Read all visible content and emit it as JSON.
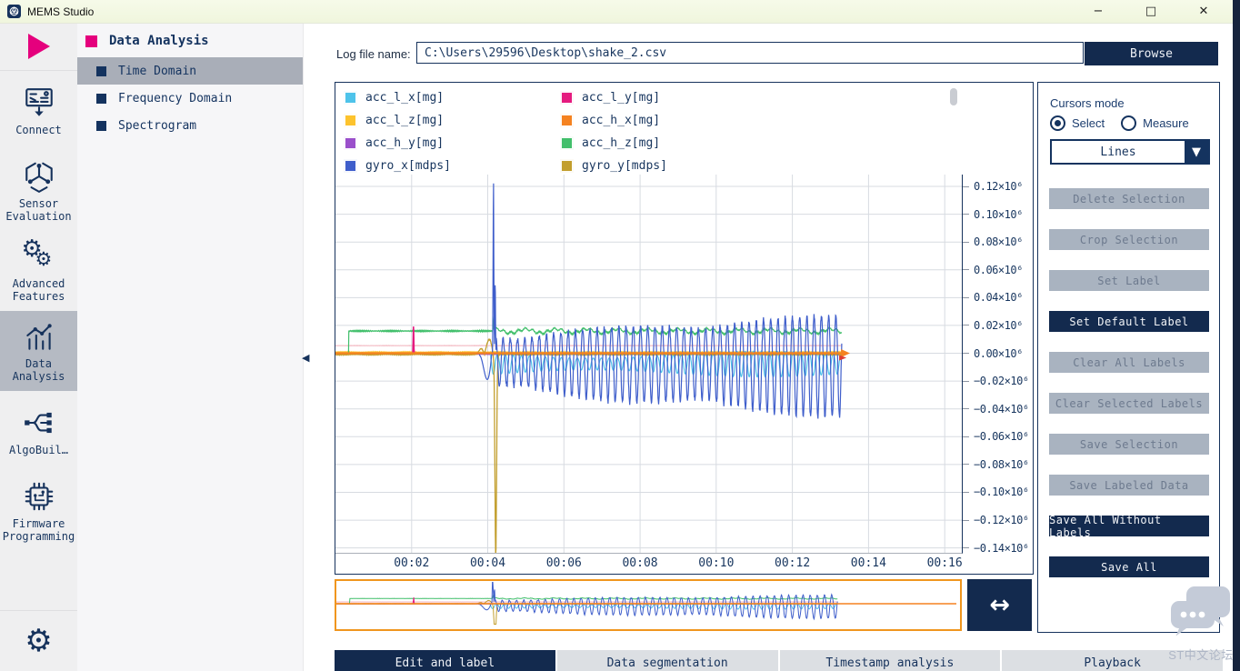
{
  "window": {
    "title": "MEMS Studio",
    "controls": {
      "minimize": "−",
      "maximize": "□",
      "close": "✕"
    }
  },
  "sidebar": {
    "items": [
      {
        "id": "run",
        "icon": "play-icon",
        "label": "",
        "selected": false
      },
      {
        "id": "connect",
        "icon": "connect-board-icon",
        "label": "Connect",
        "selected": false
      },
      {
        "id": "sensor-evaluation",
        "icon": "sensor-axes-icon",
        "label": "Sensor Evaluation",
        "selected": false
      },
      {
        "id": "advanced-features",
        "icon": "gears-icon",
        "label": "Advanced Features",
        "selected": false
      },
      {
        "id": "data-analysis",
        "icon": "bar-line-chart-icon",
        "label": "Data Analysis",
        "selected": true
      },
      {
        "id": "algobuilder",
        "icon": "flow-tree-icon",
        "label": "AlgoBuil…",
        "selected": false
      },
      {
        "id": "firmware-programming",
        "icon": "chip-icon",
        "label": "Firmware Programming",
        "selected": false
      }
    ],
    "bottom_item": {
      "id": "settings",
      "icon": "settings-gear-icon",
      "label": ""
    }
  },
  "nav_panel": {
    "header": "Data Analysis",
    "items": [
      {
        "label": "Time Domain",
        "selected": true
      },
      {
        "label": "Frequency Domain",
        "selected": false
      },
      {
        "label": "Spectrogram",
        "selected": false
      }
    ]
  },
  "file_bar": {
    "label": "Log file name:",
    "value": "C:\\Users\\29596\\Desktop\\shake_2.csv",
    "browse": "Browse"
  },
  "cursors_panel": {
    "title": "Cursors mode",
    "radios": [
      {
        "label": "Select",
        "checked": true
      },
      {
        "label": "Measure",
        "checked": false
      }
    ],
    "dropdown": "Lines",
    "dropdown_arrow": "▼",
    "buttons": [
      {
        "label": "Delete Selection",
        "enabled": false
      },
      {
        "label": "Crop Selection",
        "enabled": false
      },
      {
        "label": "Set Label",
        "enabled": false
      },
      {
        "label": "Set Default Label",
        "enabled": true
      },
      {
        "label": "Clear All Labels",
        "enabled": false
      },
      {
        "label": "Clear Selected Labels",
        "enabled": false
      },
      {
        "label": "Save Selection",
        "enabled": false
      },
      {
        "label": "Save Labeled Data",
        "enabled": false
      },
      {
        "label": "Save All Without Labels",
        "enabled": true
      },
      {
        "label": "Save All",
        "enabled": true
      }
    ]
  },
  "overview": {
    "expand_glyph": "↔"
  },
  "tabs": [
    {
      "label": "Edit and label",
      "selected": true
    },
    {
      "label": "Data segmentation",
      "selected": false
    },
    {
      "label": "Timestamp analysis",
      "selected": false
    },
    {
      "label": "Playback",
      "selected": false
    }
  ],
  "watermark": {
    "text": "ST中文论坛"
  },
  "chart_data": {
    "type": "line",
    "legend": [
      {
        "name": "acc_l_x[mg]",
        "color": "#4ec3ea"
      },
      {
        "name": "acc_l_y[mg]",
        "color": "#e51a7f"
      },
      {
        "name": "acc_l_z[mg]",
        "color": "#fdc32d"
      },
      {
        "name": "acc_h_x[mg]",
        "color": "#f58220"
      },
      {
        "name": "acc_h_y[mg]",
        "color": "#9a4fcb"
      },
      {
        "name": "acc_h_z[mg]",
        "color": "#41bf6b"
      },
      {
        "name": "gyro_x[mdps]",
        "color": "#3f5ecb"
      },
      {
        "name": "gyro_y[mdps]",
        "color": "#c29e2c"
      }
    ],
    "x_ticks": [
      "00:02",
      "00:04",
      "00:06",
      "00:08",
      "00:10",
      "00:12",
      "00:14",
      "00:16"
    ],
    "x_tick_seconds": [
      2,
      4,
      6,
      8,
      10,
      12,
      14,
      16
    ],
    "y_ticks": [
      "0.12×10⁶",
      "0.10×10⁶",
      "0.08×10⁶",
      "0.06×10⁶",
      "0.04×10⁶",
      "0.02×10⁶",
      "0.00×10⁶",
      "−0.02×10⁶",
      "−0.04×10⁶",
      "−0.06×10⁶",
      "−0.08×10⁶",
      "−0.10×10⁶",
      "−0.12×10⁶",
      "−0.14×10⁶"
    ],
    "y_tick_values": [
      120000,
      100000,
      80000,
      60000,
      40000,
      20000,
      0,
      -20000,
      -40000,
      -60000,
      -80000,
      -100000,
      -120000,
      -140000
    ],
    "x_range_s": [
      0,
      16.45
    ],
    "y_range": [
      128500,
      -143500
    ],
    "data_end_s": 13.3,
    "grid": true,
    "legend_position": "top",
    "events": {
      "green_step_s": 0.35,
      "green_level": 16000,
      "magenta_spike_s": 2.05,
      "magenta_peak": 20000,
      "blue_dip_min": -30000,
      "blue_spike_s": 4.15,
      "blue_peak": 125000,
      "gold_bump": 14000,
      "gold_spike_s": 4.21,
      "gold_min": -145000,
      "osc_start_s": 4.2,
      "osc_period_s": 0.19,
      "blue_osc_amp_start": 13000,
      "blue_osc_amp_end": 27000,
      "cyan_osc_mid": -6500,
      "cyan_osc_amp": 8000,
      "pink_level": 5500
    }
  }
}
